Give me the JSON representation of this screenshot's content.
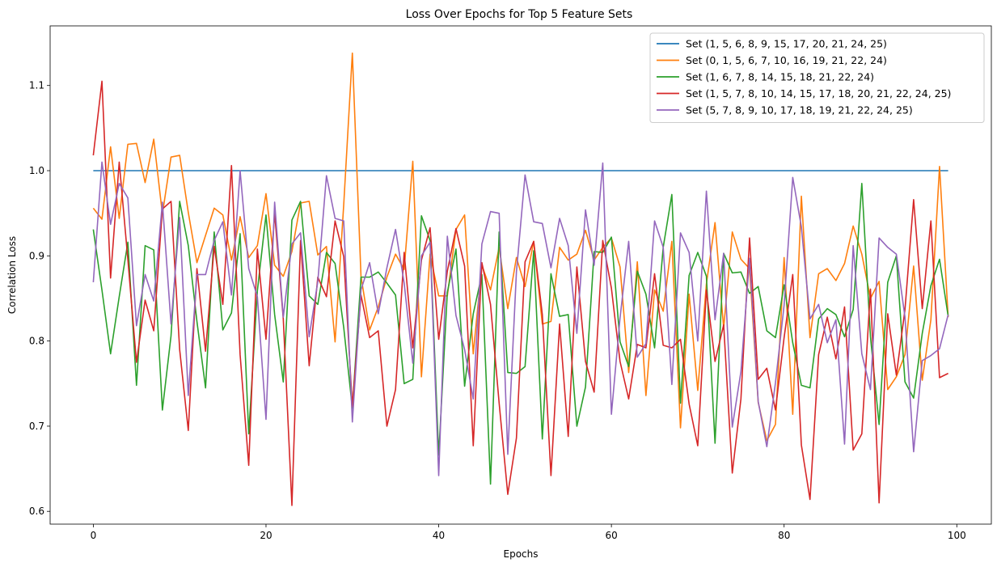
{
  "chart_data": {
    "type": "line",
    "title": "Loss Over Epochs for Top 5 Feature Sets",
    "xlabel": "Epochs",
    "ylabel": "Correlation Loss",
    "xlim": [
      -5,
      104
    ],
    "ylim": [
      0.585,
      1.17
    ],
    "xticks": [
      0,
      20,
      40,
      60,
      80,
      100
    ],
    "yticks": [
      0.6,
      0.7,
      0.8,
      0.9,
      1.0,
      1.1
    ],
    "grid": false,
    "legend_position": "top-right",
    "series": [
      {
        "name": "Set (1, 5, 6, 8, 9, 15, 17, 20, 21, 24, 25)",
        "color": "#1f77b4",
        "values": [
          1.0,
          1.0,
          1.0,
          1.0,
          1.0,
          1.0,
          1.0,
          1.0,
          1.0,
          1.0,
          1.0,
          1.0,
          1.0,
          1.0,
          1.0,
          1.0,
          1.0,
          1.0,
          1.0,
          1.0,
          1.0,
          1.0,
          1.0,
          1.0,
          1.0,
          1.0,
          1.0,
          1.0,
          1.0,
          1.0,
          1.0,
          1.0,
          1.0,
          1.0,
          1.0,
          1.0,
          1.0,
          1.0,
          1.0,
          1.0,
          1.0,
          1.0,
          1.0,
          1.0,
          1.0,
          1.0,
          1.0,
          1.0,
          1.0,
          1.0,
          1.0,
          1.0,
          1.0,
          1.0,
          1.0,
          1.0,
          1.0,
          1.0,
          1.0,
          1.0,
          1.0,
          1.0,
          1.0,
          1.0,
          1.0,
          1.0,
          1.0,
          1.0,
          1.0,
          1.0,
          1.0,
          1.0,
          1.0,
          1.0,
          1.0,
          1.0,
          1.0,
          1.0,
          1.0,
          1.0,
          1.0,
          1.0,
          1.0,
          1.0,
          1.0,
          1.0,
          1.0,
          1.0,
          1.0,
          1.0,
          1.0,
          1.0,
          1.0,
          1.0,
          1.0,
          1.0,
          1.0,
          1.0,
          1.0,
          1.0
        ]
      },
      {
        "name": "Set (0, 1, 5, 6, 7, 10, 16, 19, 21, 22, 24)",
        "color": "#ff7f0e",
        "values": [
          0.956,
          0.943,
          1.028,
          0.944,
          1.031,
          1.032,
          0.986,
          1.037,
          0.949,
          1.016,
          1.018,
          0.951,
          0.892,
          0.924,
          0.956,
          0.948,
          0.895,
          0.946,
          0.898,
          0.912,
          0.973,
          0.889,
          0.876,
          0.905,
          0.962,
          0.964,
          0.901,
          0.911,
          0.799,
          0.96,
          1.138,
          0.876,
          0.813,
          0.84,
          0.875,
          0.902,
          0.884,
          1.011,
          0.758,
          0.902,
          0.853,
          0.853,
          0.931,
          0.948,
          0.785,
          0.889,
          0.86,
          0.91,
          0.838,
          0.898,
          0.864,
          0.917,
          0.82,
          0.823,
          0.91,
          0.895,
          0.902,
          0.93,
          0.895,
          0.91,
          0.921,
          0.887,
          0.763,
          0.893,
          0.736,
          0.86,
          0.835,
          0.917,
          0.698,
          0.855,
          0.742,
          0.867,
          0.939,
          0.815,
          0.928,
          0.896,
          0.885,
          0.728,
          0.683,
          0.702,
          0.898,
          0.714,
          0.97,
          0.804,
          0.879,
          0.885,
          0.871,
          0.891,
          0.935,
          0.902,
          0.85,
          0.87,
          0.743,
          0.758,
          0.784,
          0.888,
          0.754,
          0.825,
          1.005,
          0.828
        ]
      },
      {
        "name": "Set (1, 6, 7, 8, 14, 15, 18, 21, 22, 24)",
        "color": "#2ca02c",
        "values": [
          0.931,
          0.86,
          0.785,
          0.852,
          0.916,
          0.748,
          0.912,
          0.907,
          0.719,
          0.806,
          0.964,
          0.912,
          0.823,
          0.745,
          0.928,
          0.813,
          0.833,
          0.926,
          0.691,
          0.859,
          0.948,
          0.831,
          0.752,
          0.942,
          0.964,
          0.853,
          0.843,
          0.904,
          0.891,
          0.816,
          0.721,
          0.875,
          0.875,
          0.881,
          0.868,
          0.854,
          0.75,
          0.755,
          0.947,
          0.918,
          0.666,
          0.857,
          0.908,
          0.747,
          0.832,
          0.878,
          0.632,
          0.928,
          0.763,
          0.762,
          0.77,
          0.906,
          0.685,
          0.879,
          0.829,
          0.831,
          0.7,
          0.746,
          0.905,
          0.904,
          0.922,
          0.799,
          0.77,
          0.882,
          0.855,
          0.792,
          0.91,
          0.972,
          0.727,
          0.877,
          0.904,
          0.876,
          0.68,
          0.903,
          0.88,
          0.881,
          0.856,
          0.864,
          0.812,
          0.804,
          0.866,
          0.798,
          0.748,
          0.745,
          0.826,
          0.838,
          0.831,
          0.805,
          0.837,
          0.985,
          0.805,
          0.702,
          0.869,
          0.9,
          0.752,
          0.733,
          0.809,
          0.865,
          0.896,
          0.829
        ]
      },
      {
        "name": "Set (1, 5, 7, 8, 10, 14, 15, 17, 18, 20, 21, 22, 24, 25)",
        "color": "#d62728",
        "values": [
          1.018,
          1.105,
          0.874,
          1.01,
          0.896,
          0.775,
          0.848,
          0.812,
          0.955,
          0.964,
          0.79,
          0.695,
          0.885,
          0.788,
          0.911,
          0.843,
          1.006,
          0.784,
          0.654,
          0.908,
          0.802,
          0.95,
          0.826,
          0.607,
          0.918,
          0.771,
          0.875,
          0.852,
          0.941,
          0.899,
          0.723,
          0.854,
          0.804,
          0.812,
          0.7,
          0.743,
          0.904,
          0.792,
          0.895,
          0.933,
          0.802,
          0.882,
          0.932,
          0.888,
          0.677,
          0.892,
          0.843,
          0.727,
          0.62,
          0.686,
          0.893,
          0.917,
          0.831,
          0.642,
          0.82,
          0.688,
          0.887,
          0.776,
          0.74,
          0.918,
          0.862,
          0.776,
          0.732,
          0.796,
          0.792,
          0.879,
          0.795,
          0.792,
          0.802,
          0.726,
          0.677,
          0.86,
          0.776,
          0.819,
          0.645,
          0.732,
          0.921,
          0.755,
          0.768,
          0.719,
          0.804,
          0.878,
          0.678,
          0.614,
          0.784,
          0.828,
          0.779,
          0.84,
          0.672,
          0.691,
          0.861,
          0.61,
          0.832,
          0.76,
          0.837,
          0.966,
          0.838,
          0.941,
          0.757,
          0.762
        ]
      },
      {
        "name": "Set (5, 7, 8, 9, 10, 17, 18, 19, 21, 22, 24, 25)",
        "color": "#9467bd",
        "values": [
          0.869,
          1.01,
          0.937,
          0.985,
          0.968,
          0.818,
          0.878,
          0.847,
          0.963,
          0.82,
          0.945,
          0.736,
          0.878,
          0.878,
          0.918,
          0.94,
          0.854,
          1.0,
          0.885,
          0.852,
          0.708,
          0.963,
          0.828,
          0.914,
          0.927,
          0.805,
          0.87,
          0.994,
          0.944,
          0.941,
          0.705,
          0.86,
          0.892,
          0.832,
          0.886,
          0.931,
          0.868,
          0.774,
          0.9,
          0.916,
          0.642,
          0.923,
          0.83,
          0.79,
          0.732,
          0.914,
          0.952,
          0.95,
          0.667,
          0.881,
          0.995,
          0.94,
          0.938,
          0.886,
          0.944,
          0.912,
          0.809,
          0.954,
          0.889,
          1.009,
          0.714,
          0.827,
          0.917,
          0.781,
          0.797,
          0.941,
          0.91,
          0.749,
          0.927,
          0.904,
          0.8,
          0.976,
          0.825,
          0.903,
          0.699,
          0.764,
          0.897,
          0.729,
          0.676,
          0.751,
          0.842,
          0.992,
          0.934,
          0.826,
          0.843,
          0.798,
          0.825,
          0.679,
          0.912,
          0.785,
          0.743,
          0.921,
          0.91,
          0.902,
          0.828,
          0.67,
          0.777,
          0.783,
          0.791,
          0.831
        ]
      }
    ]
  }
}
